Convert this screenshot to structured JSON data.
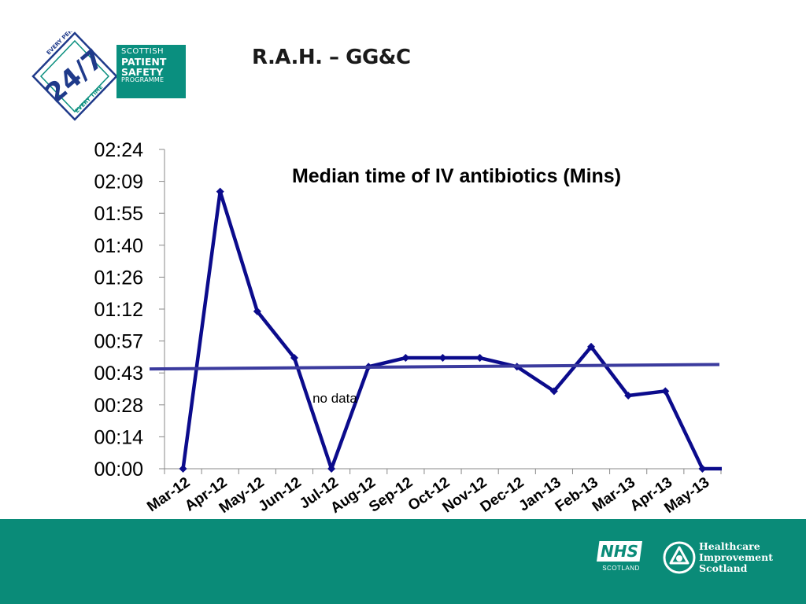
{
  "slide": {
    "title": "R.A.H. – GG&C"
  },
  "logos": {
    "sps": {
      "ring_top": "EVERY PERSON",
      "ring_bottom": "EVERY TIME",
      "number": "24/7",
      "line1": "SCOTTISH",
      "line2": "PATIENT",
      "line3": "SAFETY",
      "line4": "PROGRAMME"
    },
    "nhs": {
      "badge": "NHS",
      "sub": "SCOTLAND"
    },
    "his": {
      "line1": "Healthcare",
      "line2": "Improvement",
      "line3": "Scotland"
    }
  },
  "colors": {
    "series": "#0b0b8c",
    "median": "#3b3b9e",
    "footer": "#0a8b78",
    "brand_teal": "#0a8f7f"
  },
  "chart_data": {
    "type": "line",
    "title": "Median time of IV antibiotics (Mins)",
    "xlabel": "",
    "ylabel": "",
    "y_unit": "minutes (axis formatted hh:mm)",
    "categories": [
      "Mar-12",
      "Apr-12",
      "May-12",
      "Jun-12",
      "Jul-12",
      "Aug-12",
      "Sep-12",
      "Oct-12",
      "Nov-12",
      "Dec-12",
      "Jan-13",
      "Feb-13",
      "Mar-13",
      "Apr-13",
      "May-13"
    ],
    "series": [
      {
        "values": [
          0,
          125,
          71,
          50,
          0,
          46,
          50,
          50,
          50,
          46,
          35,
          55,
          33,
          35,
          0
        ]
      }
    ],
    "median_line": {
      "start": 45,
      "end": 47
    },
    "y_ticks": [
      "00:00",
      "00:14",
      "00:28",
      "00:43",
      "00:57",
      "01:12",
      "01:26",
      "01:40",
      "01:55",
      "02:09",
      "02:24"
    ],
    "ylim": [
      0,
      144
    ],
    "grid": false,
    "legend": "none",
    "annotations": [
      {
        "text": "no data",
        "category": "Jul-12"
      }
    ]
  }
}
